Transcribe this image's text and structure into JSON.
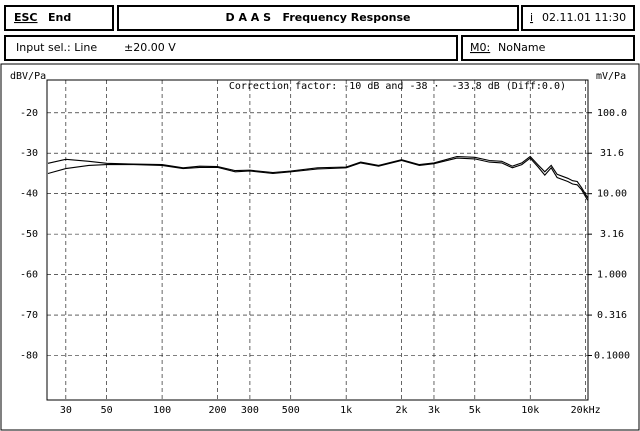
{
  "header": {
    "esc": "ESC",
    "end": "End",
    "title": "D A A S   Frequency Response",
    "info_key": "i",
    "datetime": "02.11.01 11:30"
  },
  "status": {
    "input": "Input sel.: Line",
    "range": "±20.00 V",
    "memory_key": "M0:",
    "memory_name": "NoName"
  },
  "chart_data": {
    "type": "line",
    "y_label": "dBV/Pa",
    "y2_label": "mV/Pa",
    "annotation": "Correction factor: -10 dB and -38 ·  -33.8 dB (Diff:0.0)",
    "x_scale": "log",
    "y2_scale": "log",
    "grid": true,
    "xlim": [
      23.7,
      20600
    ],
    "xticks": [
      30,
      50,
      100,
      200,
      300,
      500,
      {
        "value": 1000,
        "label": "1k"
      },
      {
        "value": 2000,
        "label": "2k"
      },
      {
        "value": 3000,
        "label": "3k"
      },
      {
        "value": 5000,
        "label": "5k"
      },
      {
        "value": 10000,
        "label": "10k"
      },
      {
        "value": 20000,
        "label": "20kHz"
      }
    ],
    "ylim": [
      -91,
      -11.9
    ],
    "yticks": [
      -20,
      -30,
      -40,
      -50,
      -60,
      -70,
      -80
    ],
    "y2lim": [
      0.0282,
      254
    ],
    "y2ticks": [
      {
        "value": 100,
        "label": "100.0"
      },
      31.6,
      {
        "value": 10,
        "label": "10.00"
      },
      3.16,
      {
        "value": 1,
        "label": "1.000"
      },
      0.316,
      {
        "value": 0.1,
        "label": "0.1000"
      }
    ],
    "x": [
      24,
      30,
      40,
      50,
      70,
      100,
      130,
      160,
      200,
      250,
      300,
      400,
      500,
      700,
      1000,
      1200,
      1500,
      2000,
      2500,
      3000,
      4000,
      5000,
      6000,
      7000,
      8000,
      9000,
      10000,
      11000,
      12000,
      13000,
      14000,
      16000,
      17000,
      18000,
      19000,
      20500
    ],
    "series": [
      {
        "color": "#000000",
        "values": [
          -32.5,
          -31.5,
          -32,
          -32.5,
          -32.7,
          -32.8,
          -33.6,
          -33.2,
          -33.3,
          -34.3,
          -34.2,
          -34.8,
          -34.4,
          -33.6,
          -33.4,
          -32.2,
          -33,
          -31.6,
          -32.8,
          -32.4,
          -30.8,
          -31,
          -31.8,
          -32,
          -33.2,
          -32.4,
          -30.8,
          -32.8,
          -34.6,
          -33,
          -35.2,
          -36.2,
          -36.8,
          -37,
          -38.5,
          -41
        ]
      },
      {
        "color": "#000000",
        "values": [
          -35,
          -33.8,
          -33,
          -32.8,
          -32.8,
          -33,
          -33.8,
          -33.5,
          -33.5,
          -34.6,
          -34.4,
          -35,
          -34.6,
          -33.9,
          -33.6,
          -32.4,
          -33.2,
          -31.8,
          -33,
          -32.6,
          -31.2,
          -31.4,
          -32.2,
          -32.4,
          -33.6,
          -32.8,
          -31.2,
          -33.3,
          -35.4,
          -33.6,
          -36,
          -37,
          -37.6,
          -37.8,
          -39,
          -41.6
        ]
      }
    ]
  }
}
